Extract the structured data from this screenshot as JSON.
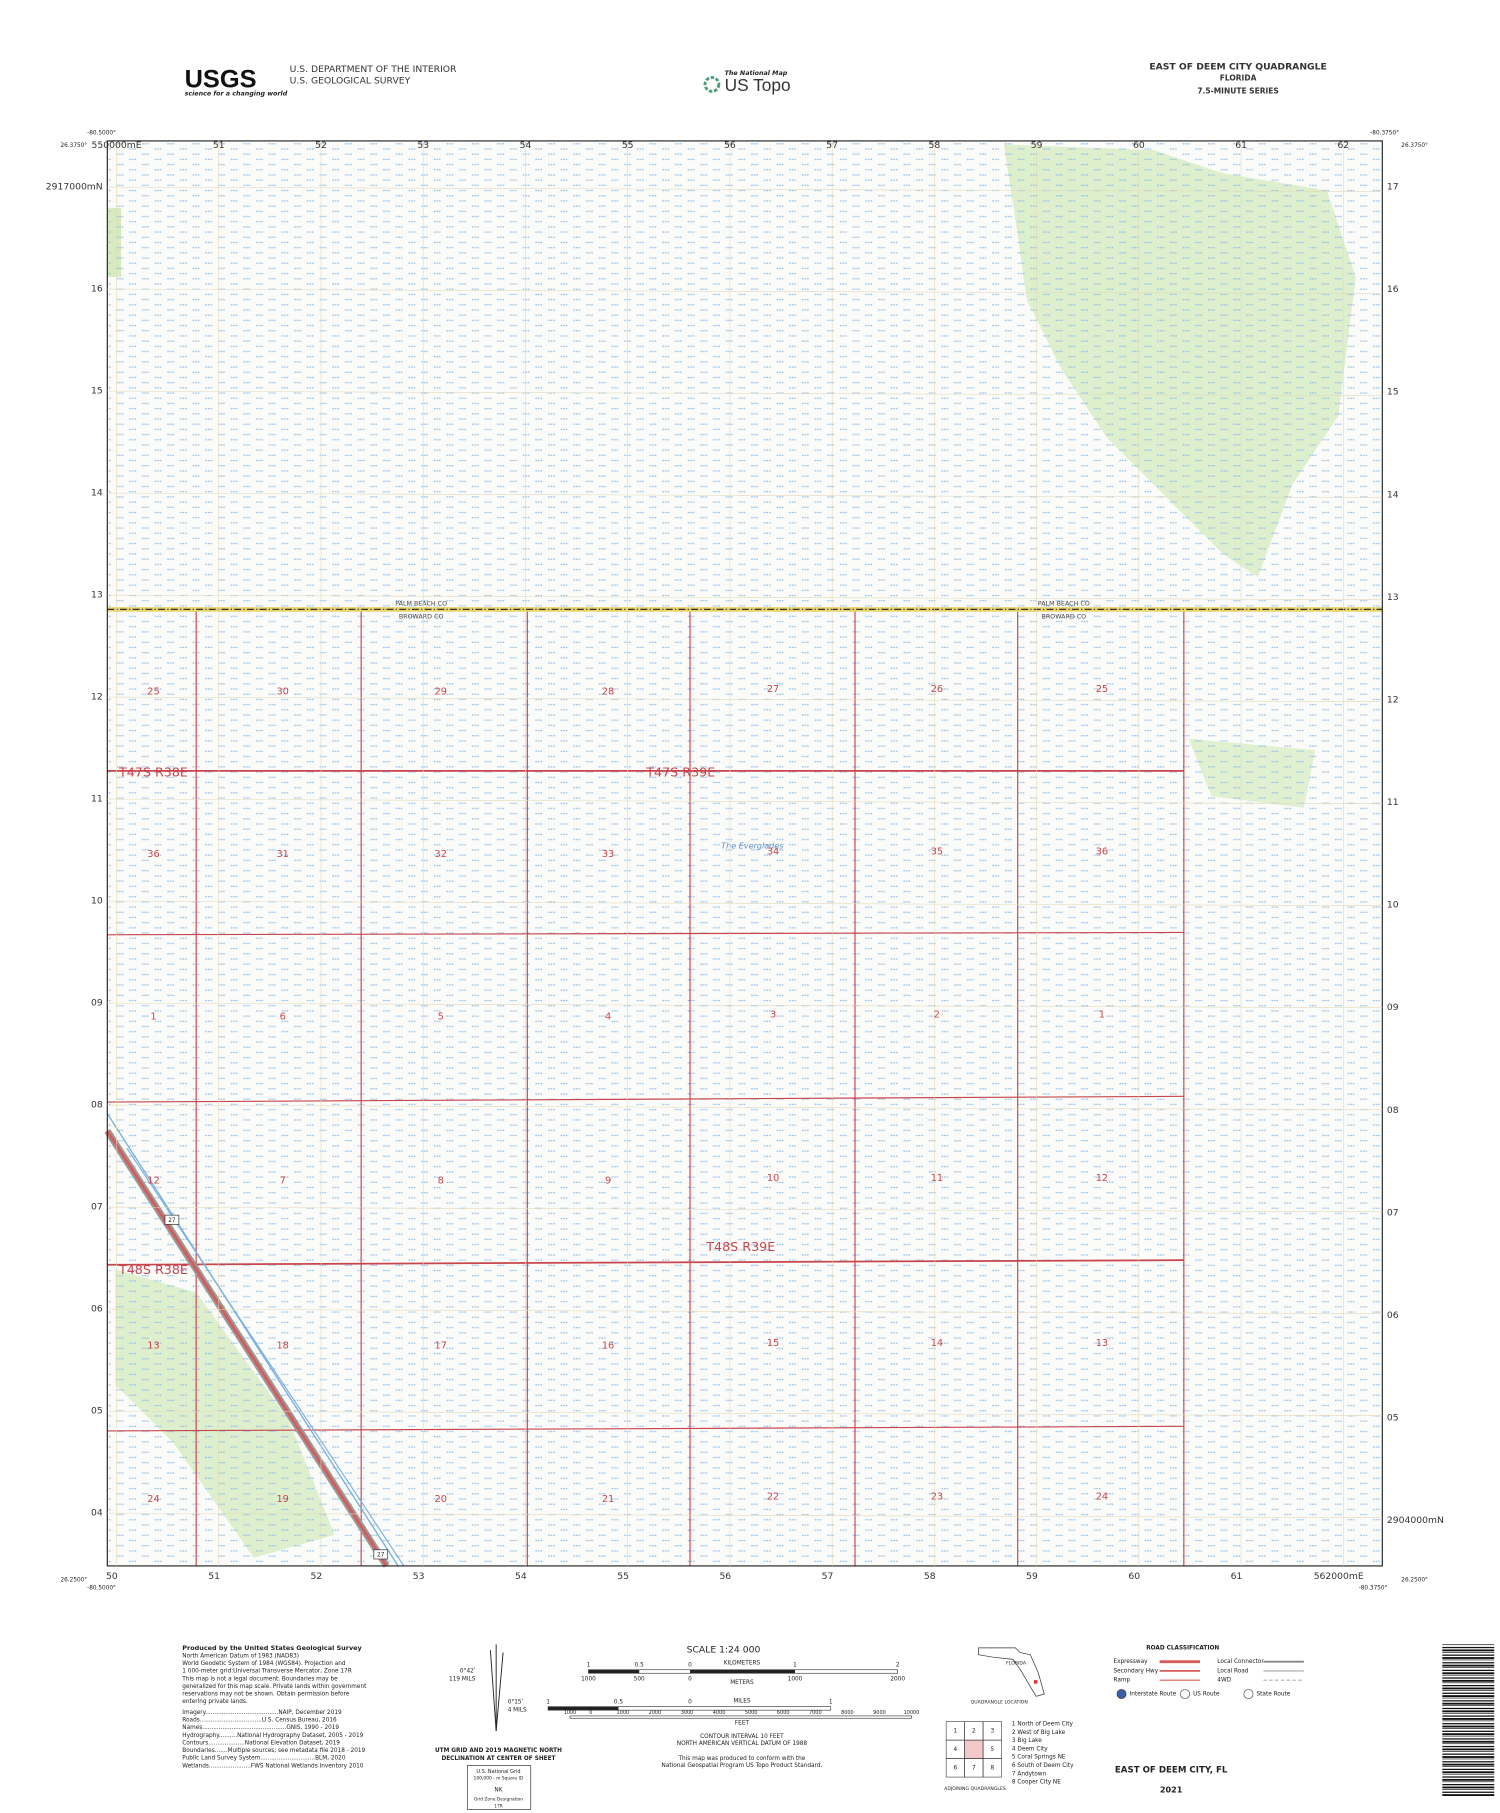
{
  "header": {
    "usgs_logo": "USGS",
    "usgs_tagline": "science for a changing world",
    "agency": [
      "U.S. DEPARTMENT OF THE INTERIOR",
      "U.S. GEOLOGICAL SURVEY"
    ],
    "national_map": "The National Map",
    "us_topo": "US Topo",
    "title": "EAST OF DEEM CITY QUADRANGLE",
    "state": "FLORIDA",
    "series": "7.5-MINUTE SERIES"
  },
  "map": {
    "corners": {
      "nw_lon": "-80.5000°",
      "nw_lat": "26.3750°",
      "ne_lon": "-80.3750°",
      "ne_lat": "26.3750°",
      "sw_lat": "26.2500°",
      "sw_lon": "-80.5000°",
      "se_lon": "-80.3750°",
      "se_lat": "26.2500°"
    },
    "eastings_top": [
      "550000mE",
      "51",
      "52",
      "53",
      "54",
      "55",
      "56",
      "57",
      "58",
      "59",
      "60",
      "61",
      "62"
    ],
    "eastings_bottom": [
      "50",
      "51",
      "52",
      "53",
      "54",
      "55",
      "56",
      "57",
      "58",
      "59",
      "60",
      "61",
      "562000mE"
    ],
    "northings_left": [
      "2917000mN",
      "16",
      "15",
      "14",
      "13",
      "12",
      "11",
      "10",
      "09",
      "08",
      "07",
      "06",
      "05",
      "04"
    ],
    "northings_right": [
      "17",
      "16",
      "15",
      "14",
      "13",
      "12",
      "11",
      "10",
      "09",
      "08",
      "07",
      "06",
      "05",
      "2904000mN"
    ],
    "sections": [
      [
        "25",
        "30",
        "29",
        "28",
        "27",
        "26",
        "25"
      ],
      [
        "36",
        "31",
        "32",
        "33",
        "34",
        "35",
        "36"
      ],
      [
        "1",
        "6",
        "5",
        "4",
        "3",
        "2",
        "1"
      ],
      [
        "12",
        "7",
        "8",
        "9",
        "10",
        "11",
        "12"
      ],
      [
        "13",
        "18",
        "17",
        "16",
        "15",
        "14",
        "13"
      ],
      [
        "24",
        "19",
        "20",
        "21",
        "22",
        "23",
        "24"
      ]
    ],
    "townships": [
      "T47S R38E",
      "T47S R39E",
      "T48S R38E",
      "T48S R39E"
    ],
    "place": "The Everglades",
    "counties": [
      [
        "PALM BEACH CO",
        "BROWARD CO"
      ],
      [
        "PALM BEACH CO",
        "BROWARD CO"
      ]
    ],
    "route": "27"
  },
  "footer": {
    "produced_by": "Produced by the United States Geological Survey",
    "notes": [
      "North American Datum of 1983 (NAD83)",
      "World Geodetic System of 1984 (WGS84). Projection and",
      "1 000-meter grid:Universal Transverse Mercator, Zone 17R",
      "This map is not a legal document. Boundaries may be",
      "generalized for this map scale. Private lands within government",
      "reservations may not be shown. Obtain permission before",
      "entering private lands."
    ],
    "credits": [
      "Imagery........................................NAIP, December 2019",
      "Roads..................................U.S. Census Bureau, 2016",
      "Names..............................................GNIS, 1990 - 2019",
      "Hydrography..........National Hydrography Dataset, 2005 - 2019",
      "Contours....................National Elevation Dataset, 2019",
      "Boundaries.......Multiple sources; see metadata file 2018 - 2019",
      "Public Land Survey System..............................BLM, 2020",
      "Wetlands.......................FWS National Wetlands Inventory 2010"
    ],
    "declination": {
      "angles": [
        "0°42ʹ",
        "119 MILS",
        "0°15ʹ",
        "4 MILS"
      ],
      "caption": [
        "UTM GRID AND 2019 MAGNETIC NORTH",
        "DECLINATION AT CENTER OF SHEET"
      ]
    },
    "usng": {
      "title": "U.S. National Grid",
      "square_id": "100,000 - m Square ID",
      "square": "NK",
      "gzd_label": "Grid Zone Designation",
      "gzd": "17R"
    },
    "scale": {
      "title": "SCALE 1:24 000",
      "km_unit": "KILOMETERS",
      "km": [
        "1",
        "0.5",
        "0",
        "1",
        "2"
      ],
      "m_unit": "METERS",
      "m": [
        "1000",
        "500",
        "0",
        "1000",
        "2000"
      ],
      "mi_unit": "MILES",
      "mi": [
        "1",
        "0.5",
        "0",
        "1"
      ],
      "ft_unit": "FEET",
      "ft": [
        "1000",
        "0",
        "1000",
        "2000",
        "3000",
        "4000",
        "5000",
        "6000",
        "7000",
        "8000",
        "9000",
        "10000"
      ]
    },
    "contour": [
      "CONTOUR INTERVAL 10 FEET",
      "NORTH AMERICAN VERTICAL DATUM OF 1988"
    ],
    "standard": [
      "This map was produced to conform with the",
      "National Geospatial Program US Topo Product Standard."
    ],
    "location": {
      "state": "FLORIDA",
      "caption": "QUADRANGLE LOCATION"
    },
    "adjoining": {
      "cells": [
        "1",
        "2",
        "3",
        "4",
        "5",
        "6",
        "7",
        "8"
      ],
      "list": [
        "1 North of Deem City",
        "2 West of Big Lake",
        "3 Big Lake",
        "4 Deem City",
        "5 Coral Springs NE",
        "6 South of Deem City",
        "7 Andytown",
        "8 Cooper City NE"
      ],
      "caption": "ADJOINING QUADRANGLES"
    },
    "roads": {
      "title": "ROAD CLASSIFICATION",
      "items": [
        "Expressway",
        "Secondary Hwy",
        "Ramp",
        "Local Connector",
        "Local Road",
        "4WD"
      ],
      "shields": [
        "Interstate Route",
        "US Route",
        "State Route"
      ]
    },
    "sheet_title": "EAST OF DEEM CITY, FL",
    "year": "2021"
  }
}
